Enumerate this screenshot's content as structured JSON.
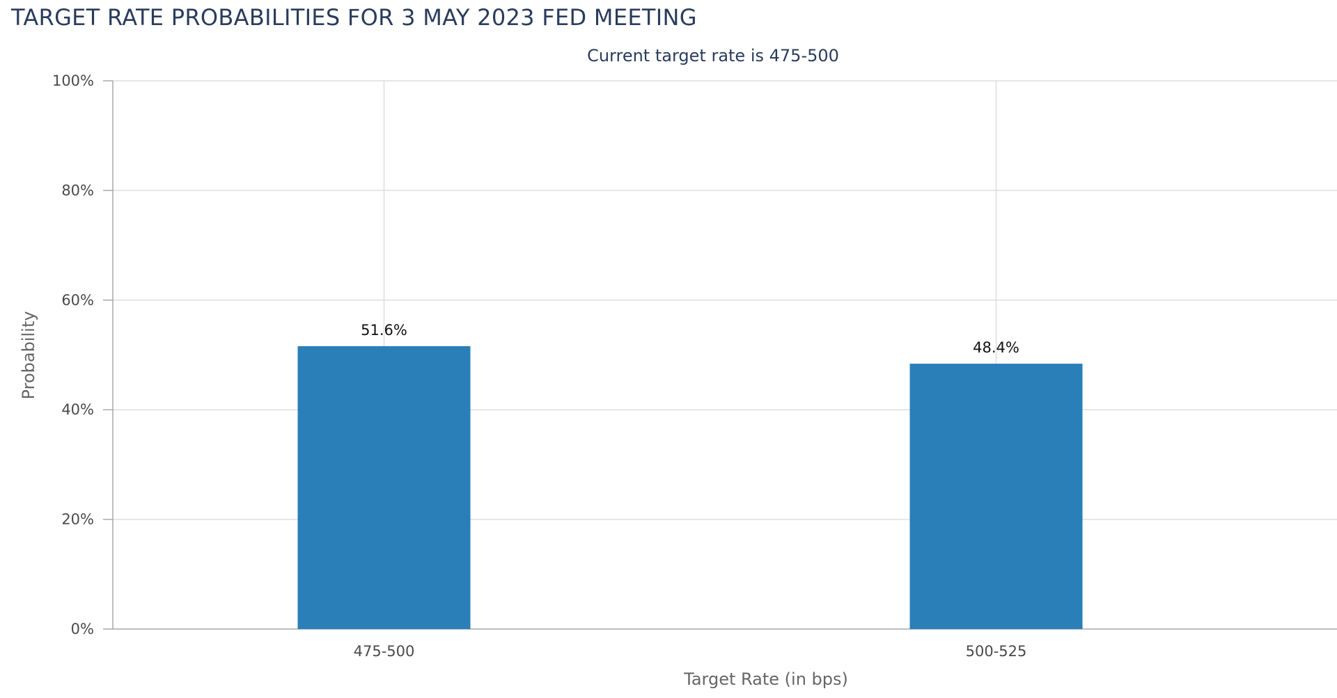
{
  "chart_data": {
    "type": "bar",
    "title": "TARGET RATE PROBABILITIES FOR 3 MAY 2023 FED MEETING",
    "subtitle": "Current target rate is 475-500",
    "xlabel": "Target Rate (in bps)",
    "ylabel": "Probability",
    "categories": [
      "475-500",
      "500-525"
    ],
    "values": [
      51.6,
      48.4
    ],
    "data_labels": [
      "51.6%",
      "48.4%"
    ],
    "ylim": [
      0,
      100
    ],
    "yticks": [
      "0%",
      "20%",
      "40%",
      "60%",
      "80%",
      "100%"
    ],
    "grid": true,
    "legend": "none",
    "colors": {
      "bar": "#2a7fb8",
      "title": "#2a3c5c",
      "grid": "#dedede"
    }
  }
}
